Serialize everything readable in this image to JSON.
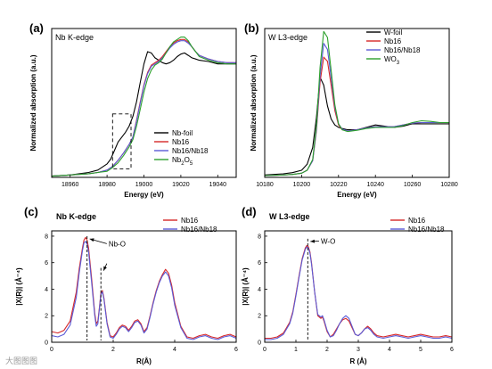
{
  "watermark": "大图图图",
  "chart_data": [
    {
      "type": "line",
      "letter": "(a)",
      "inset_title": "Nb K-edge",
      "xlabel": "Energy (eV)",
      "ylabel": "Normalized absorption (a.u.)",
      "xlim": [
        18950,
        19050
      ],
      "ylim": [
        0,
        1.22
      ],
      "xticks": [
        18960,
        18980,
        19000,
        19020,
        19040
      ],
      "yticks_shown": false,
      "legend_position": "lower-right",
      "dashed_box": {
        "x": [
          18983,
          18993
        ],
        "y": [
          0.07,
          0.52
        ]
      },
      "series": [
        {
          "name": "Nb-foil",
          "color": "#000000",
          "x": [
            18950,
            18960,
            18970,
            18975,
            18980,
            18982,
            18984,
            18986,
            18988,
            18990,
            18992,
            18994,
            18996,
            18998,
            19000,
            19002,
            19004,
            19006,
            19008,
            19010,
            19012,
            19014,
            19016,
            19018,
            19020,
            19022,
            19024,
            19026,
            19028,
            19030,
            19035,
            19040,
            19045,
            19050
          ],
          "y": [
            0.01,
            0.02,
            0.04,
            0.06,
            0.11,
            0.15,
            0.22,
            0.29,
            0.33,
            0.37,
            0.42,
            0.5,
            0.62,
            0.78,
            0.93,
            1.03,
            1.02,
            0.98,
            0.96,
            0.94,
            0.93,
            0.94,
            0.96,
            0.99,
            1.01,
            1.02,
            1.0,
            0.98,
            0.97,
            0.96,
            0.95,
            0.93,
            0.93,
            0.93
          ]
        },
        {
          "name": "Nb16",
          "color": "#d62728",
          "x": [
            18950,
            18960,
            18970,
            18975,
            18980,
            18983,
            18986,
            18989,
            18992,
            18994,
            18996,
            18998,
            19000,
            19002,
            19004,
            19006,
            19008,
            19010,
            19012,
            19014,
            19016,
            19018,
            19020,
            19022,
            19024,
            19026,
            19028,
            19030,
            19035,
            19040,
            19045,
            19050
          ],
          "y": [
            0.01,
            0.02,
            0.03,
            0.04,
            0.06,
            0.09,
            0.14,
            0.2,
            0.27,
            0.33,
            0.47,
            0.62,
            0.76,
            0.86,
            0.92,
            0.94,
            0.96,
            0.99,
            1.03,
            1.07,
            1.1,
            1.12,
            1.13,
            1.13,
            1.11,
            1.07,
            1.03,
            1.0,
            0.97,
            0.95,
            0.94,
            0.94
          ]
        },
        {
          "name": "Nb16/Nb18",
          "color": "#5b5bd6",
          "x": [
            18950,
            18960,
            18970,
            18975,
            18980,
            18983,
            18986,
            18989,
            18992,
            18994,
            18996,
            18998,
            19000,
            19002,
            19004,
            19006,
            19008,
            19010,
            19012,
            19014,
            19016,
            19018,
            19020,
            19022,
            19024,
            19026,
            19028,
            19030,
            19035,
            19040,
            19045,
            19050
          ],
          "y": [
            0.01,
            0.02,
            0.03,
            0.04,
            0.06,
            0.09,
            0.14,
            0.2,
            0.27,
            0.33,
            0.46,
            0.61,
            0.75,
            0.85,
            0.91,
            0.93,
            0.95,
            0.98,
            1.02,
            1.06,
            1.09,
            1.11,
            1.12,
            1.12,
            1.1,
            1.07,
            1.03,
            1.0,
            0.97,
            0.95,
            0.94,
            0.94
          ]
        },
        {
          "name": "Nb2O5",
          "color": "#2ca02c",
          "x": [
            18950,
            18960,
            18970,
            18975,
            18980,
            18983,
            18986,
            18989,
            18992,
            18994,
            18996,
            18998,
            19000,
            19002,
            19004,
            19006,
            19008,
            19010,
            19012,
            19014,
            19016,
            19018,
            19020,
            19022,
            19024,
            19026,
            19028,
            19030,
            19035,
            19040,
            19045,
            19050
          ],
          "y": [
            0.01,
            0.02,
            0.03,
            0.04,
            0.05,
            0.08,
            0.12,
            0.18,
            0.25,
            0.31,
            0.42,
            0.56,
            0.7,
            0.81,
            0.88,
            0.92,
            0.94,
            0.97,
            1.02,
            1.07,
            1.11,
            1.13,
            1.15,
            1.15,
            1.12,
            1.07,
            1.03,
            0.99,
            0.96,
            0.94,
            0.93,
            0.93
          ]
        }
      ]
    },
    {
      "type": "line",
      "letter": "(b)",
      "inset_title": "W L3-edge",
      "xlabel": "Energy (eV)",
      "ylabel": "Normalized absorption (a.u.)",
      "xlim": [
        10180,
        10280
      ],
      "ylim": [
        0,
        2.5
      ],
      "xticks": [
        10180,
        10200,
        10220,
        10240,
        10260,
        10280
      ],
      "yticks_shown": false,
      "legend_position": "top-right",
      "series": [
        {
          "name": "W-foil",
          "color": "#000000",
          "x": [
            10180,
            10190,
            10195,
            10200,
            10203,
            10206,
            10208,
            10210,
            10212,
            10214,
            10216,
            10218,
            10220,
            10222,
            10225,
            10230,
            10235,
            10240,
            10245,
            10250,
            10255,
            10260,
            10265,
            10270,
            10275,
            10280
          ],
          "y": [
            0.04,
            0.06,
            0.08,
            0.12,
            0.22,
            0.5,
            1.0,
            1.68,
            1.55,
            1.2,
            0.98,
            0.88,
            0.84,
            0.82,
            0.8,
            0.8,
            0.84,
            0.88,
            0.86,
            0.84,
            0.86,
            0.9,
            0.9,
            0.9,
            0.9,
            0.9
          ]
        },
        {
          "name": "Nb16",
          "color": "#d62728",
          "x": [
            10180,
            10190,
            10195,
            10200,
            10203,
            10206,
            10208,
            10210,
            10212,
            10214,
            10216,
            10218,
            10220,
            10222,
            10225,
            10230,
            10235,
            10240,
            10245,
            10250,
            10255,
            10260,
            10265,
            10270,
            10275,
            10280
          ],
          "y": [
            0.03,
            0.04,
            0.05,
            0.07,
            0.12,
            0.28,
            0.78,
            1.6,
            2.02,
            1.95,
            1.55,
            1.12,
            0.88,
            0.8,
            0.78,
            0.8,
            0.83,
            0.85,
            0.85,
            0.85,
            0.88,
            0.91,
            0.92,
            0.92,
            0.92,
            0.92
          ]
        },
        {
          "name": "Nb16/Nb18",
          "color": "#5b5bd6",
          "x": [
            10180,
            10190,
            10195,
            10200,
            10203,
            10206,
            10208,
            10210,
            10212,
            10214,
            10216,
            10218,
            10220,
            10222,
            10225,
            10230,
            10235,
            10240,
            10245,
            10250,
            10255,
            10260,
            10265,
            10270,
            10275,
            10280
          ],
          "y": [
            0.03,
            0.04,
            0.05,
            0.07,
            0.12,
            0.28,
            0.8,
            1.7,
            2.25,
            2.15,
            1.68,
            1.18,
            0.9,
            0.81,
            0.78,
            0.8,
            0.83,
            0.85,
            0.85,
            0.85,
            0.88,
            0.91,
            0.92,
            0.92,
            0.92,
            0.92
          ]
        },
        {
          "name": "WO3",
          "color": "#2ca02c",
          "x": [
            10180,
            10190,
            10195,
            10200,
            10203,
            10206,
            10208,
            10210,
            10212,
            10214,
            10216,
            10218,
            10220,
            10222,
            10225,
            10230,
            10235,
            10240,
            10245,
            10250,
            10255,
            10260,
            10265,
            10270,
            10275,
            10280
          ],
          "y": [
            0.03,
            0.04,
            0.05,
            0.07,
            0.12,
            0.3,
            0.85,
            1.85,
            2.45,
            2.35,
            1.8,
            1.22,
            0.9,
            0.8,
            0.77,
            0.79,
            0.82,
            0.84,
            0.84,
            0.84,
            0.87,
            0.92,
            0.95,
            0.94,
            0.92,
            0.92
          ]
        }
      ]
    },
    {
      "type": "line",
      "letter": "(c)",
      "inset_title": "Nb K-edge",
      "xlabel": "R(Å)",
      "ylabel": "|X(R)| (Å⁻⁴)",
      "xlim": [
        0,
        6
      ],
      "ylim": [
        0,
        8.4
      ],
      "xticks": [
        0,
        2,
        4,
        6
      ],
      "yticks": [
        0,
        2,
        4,
        6,
        8
      ],
      "legend_position": "top-right",
      "annotations": [
        {
          "text": "Nb-O",
          "peak_x": 1.15,
          "peak_y": 8.0,
          "label_x": 1.85,
          "label_y": 7.3
        },
        {
          "text": "",
          "peak_x": 1.6,
          "peak_y": 5.6,
          "label_x": 1.85,
          "label_y": 5.8
        }
      ],
      "series": [
        {
          "name": "Nb16",
          "color": "#d62728",
          "x": [
            0,
            0.2,
            0.4,
            0.6,
            0.8,
            0.9,
            1.0,
            1.05,
            1.1,
            1.15,
            1.2,
            1.3,
            1.4,
            1.45,
            1.5,
            1.55,
            1.6,
            1.65,
            1.7,
            1.8,
            1.9,
            2.0,
            2.1,
            2.2,
            2.3,
            2.4,
            2.5,
            2.6,
            2.7,
            2.8,
            2.9,
            3.0,
            3.1,
            3.2,
            3.3,
            3.4,
            3.5,
            3.6,
            3.7,
            3.8,
            3.9,
            4.0,
            4.2,
            4.4,
            4.6,
            4.8,
            5.0,
            5.2,
            5.4,
            5.6,
            5.8,
            6.0
          ],
          "y": [
            0.8,
            0.7,
            0.9,
            1.6,
            3.8,
            5.6,
            7.1,
            7.7,
            7.9,
            7.7,
            7.1,
            4.8,
            2.2,
            1.4,
            1.6,
            2.6,
            3.7,
            3.9,
            3.3,
            1.5,
            0.5,
            0.4,
            0.7,
            1.1,
            1.3,
            1.2,
            0.9,
            1.2,
            1.6,
            1.7,
            1.4,
            0.8,
            1.1,
            2.0,
            3.0,
            3.9,
            4.6,
            5.1,
            5.5,
            5.2,
            4.3,
            3.0,
            1.2,
            0.4,
            0.3,
            0.5,
            0.6,
            0.4,
            0.3,
            0.5,
            0.6,
            0.4
          ]
        },
        {
          "name": "Nb16/Nb18",
          "color": "#5b5bd6",
          "x": [
            0,
            0.2,
            0.4,
            0.6,
            0.8,
            0.9,
            1.0,
            1.05,
            1.1,
            1.15,
            1.2,
            1.3,
            1.4,
            1.45,
            1.5,
            1.55,
            1.6,
            1.65,
            1.7,
            1.8,
            1.9,
            2.0,
            2.1,
            2.2,
            2.3,
            2.4,
            2.5,
            2.6,
            2.7,
            2.8,
            2.9,
            3.0,
            3.1,
            3.2,
            3.3,
            3.4,
            3.5,
            3.6,
            3.7,
            3.8,
            3.9,
            4.0,
            4.2,
            4.4,
            4.6,
            4.8,
            5.0,
            5.2,
            5.4,
            5.6,
            5.8,
            6.0
          ],
          "y": [
            0.5,
            0.4,
            0.6,
            1.3,
            3.4,
            5.3,
            6.9,
            7.5,
            7.6,
            7.4,
            6.8,
            4.5,
            2.0,
            1.2,
            1.4,
            2.5,
            3.6,
            3.8,
            3.2,
            1.4,
            0.4,
            0.3,
            0.6,
            1.0,
            1.2,
            1.1,
            0.8,
            1.1,
            1.5,
            1.6,
            1.3,
            0.7,
            1.0,
            1.9,
            2.9,
            3.8,
            4.5,
            5.0,
            5.3,
            5.0,
            4.1,
            2.8,
            1.1,
            0.3,
            0.2,
            0.4,
            0.5,
            0.3,
            0.2,
            0.4,
            0.5,
            0.3
          ]
        }
      ]
    },
    {
      "type": "line",
      "letter": "(d)",
      "inset_title": "W L3-edge",
      "xlabel": "R (Å)",
      "ylabel": "|X(R)| (Å⁻⁴)",
      "xlim": [
        0,
        6
      ],
      "ylim": [
        0,
        8.4
      ],
      "xticks": [
        0,
        1,
        2,
        3,
        4,
        5,
        6
      ],
      "yticks": [
        0,
        2,
        4,
        6,
        8
      ],
      "legend_position": "top-right",
      "annotations": [
        {
          "text": "W-O",
          "peak_x": 1.38,
          "peak_y": 7.8,
          "label_x": 1.8,
          "label_y": 7.5
        }
      ],
      "series": [
        {
          "name": "Nb16",
          "color": "#d62728",
          "x": [
            0,
            0.2,
            0.4,
            0.6,
            0.8,
            0.9,
            1.0,
            1.1,
            1.2,
            1.3,
            1.35,
            1.4,
            1.45,
            1.5,
            1.6,
            1.7,
            1.8,
            1.85,
            1.9,
            2.0,
            2.1,
            2.2,
            2.3,
            2.4,
            2.5,
            2.6,
            2.7,
            2.8,
            2.9,
            3.0,
            3.1,
            3.2,
            3.3,
            3.4,
            3.5,
            3.6,
            3.8,
            4.0,
            4.2,
            4.4,
            4.6,
            4.8,
            5.0,
            5.2,
            5.4,
            5.6,
            5.8,
            6.0
          ],
          "y": [
            0.3,
            0.3,
            0.4,
            0.7,
            1.5,
            2.3,
            3.6,
            5.0,
            6.3,
            7.1,
            7.3,
            7.2,
            6.8,
            6.0,
            3.8,
            2.0,
            1.8,
            1.9,
            1.6,
            0.8,
            0.4,
            0.6,
            1.0,
            1.4,
            1.7,
            1.8,
            1.6,
            1.1,
            0.6,
            0.5,
            0.7,
            1.0,
            1.2,
            1.0,
            0.7,
            0.5,
            0.4,
            0.5,
            0.6,
            0.5,
            0.4,
            0.5,
            0.6,
            0.5,
            0.4,
            0.4,
            0.5,
            0.4
          ]
        },
        {
          "name": "Nb16/Nb18",
          "color": "#5b5bd6",
          "x": [
            0,
            0.2,
            0.4,
            0.6,
            0.8,
            0.9,
            1.0,
            1.1,
            1.2,
            1.3,
            1.35,
            1.4,
            1.45,
            1.5,
            1.6,
            1.7,
            1.8,
            1.85,
            1.9,
            2.0,
            2.1,
            2.2,
            2.3,
            2.4,
            2.5,
            2.6,
            2.7,
            2.8,
            2.9,
            3.0,
            3.1,
            3.2,
            3.3,
            3.4,
            3.5,
            3.6,
            3.8,
            4.0,
            4.2,
            4.4,
            4.6,
            4.8,
            5.0,
            5.2,
            5.4,
            5.6,
            5.8,
            6.0
          ],
          "y": [
            0.2,
            0.2,
            0.3,
            0.6,
            1.4,
            2.2,
            3.5,
            4.9,
            6.2,
            7.0,
            7.2,
            7.1,
            6.7,
            5.9,
            3.8,
            2.1,
            1.9,
            2.0,
            1.7,
            0.9,
            0.4,
            0.5,
            0.9,
            1.4,
            1.8,
            2.0,
            1.8,
            1.2,
            0.6,
            0.5,
            0.7,
            1.0,
            1.1,
            0.9,
            0.6,
            0.4,
            0.3,
            0.4,
            0.5,
            0.4,
            0.3,
            0.4,
            0.5,
            0.4,
            0.3,
            0.3,
            0.4,
            0.3
          ]
        }
      ]
    }
  ]
}
